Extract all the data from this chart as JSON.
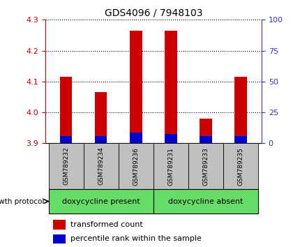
{
  "title": "GDS4096 / 7948103",
  "samples": [
    "GSM789232",
    "GSM789234",
    "GSM789236",
    "GSM789231",
    "GSM789233",
    "GSM789235"
  ],
  "red_values": [
    4.115,
    4.065,
    4.265,
    4.265,
    3.98,
    4.115
  ],
  "blue_values": [
    3.924,
    3.924,
    3.934,
    3.929,
    3.924,
    3.924
  ],
  "y_min": 3.9,
  "y_max": 4.3,
  "y_ticks_left": [
    3.9,
    4.0,
    4.1,
    4.2,
    4.3
  ],
  "y_ticks_right": [
    0,
    25,
    50,
    75,
    100
  ],
  "group1_label": "doxycycline present",
  "group2_label": "doxycycline absent",
  "group1_count": 3,
  "group2_count": 3,
  "growth_protocol_label": "growth protocol",
  "legend_red": "transformed count",
  "legend_blue": "percentile rank within the sample",
  "bar_width": 0.35,
  "group_box_color": "#66DD66",
  "sample_box_color": "#C0C0C0",
  "left_axis_color": "#CC0000",
  "right_axis_color": "#3333CC",
  "title_fontsize": 10,
  "tick_fontsize": 8,
  "legend_fontsize": 8,
  "sample_label_fontsize": 6.5,
  "group_label_fontsize": 8
}
